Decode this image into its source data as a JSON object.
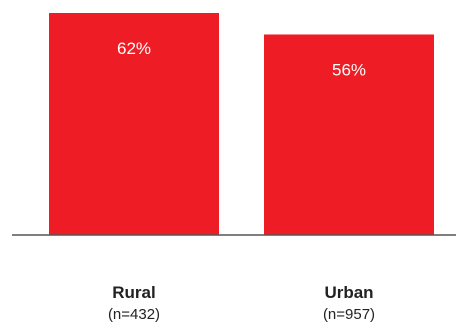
{
  "chart_data": {
    "type": "bar",
    "categories": [
      "Rural",
      "Urban"
    ],
    "category_sublabels": [
      "(n=432)",
      "(n=957)"
    ],
    "values": [
      62,
      56
    ],
    "value_labels": [
      "62%",
      "56%"
    ],
    "unit": "%",
    "ylim": [
      0,
      62
    ],
    "grid": false,
    "legend": "none",
    "colors": {
      "bar": "#ee1c25",
      "axis": "#555555",
      "value_text": "#ffffff",
      "category_text": "#222222"
    }
  }
}
